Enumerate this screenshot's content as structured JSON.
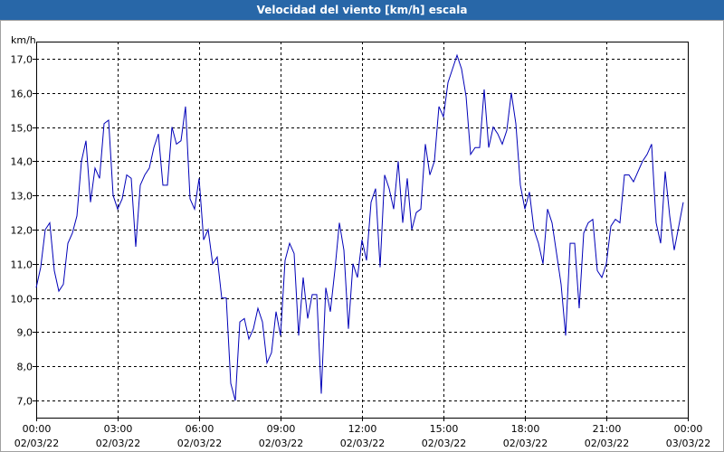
{
  "chart_data": {
    "type": "line",
    "title": "Velocidad del viento [km/h] escala",
    "y_unit": "km/h",
    "x": [
      0,
      10,
      20,
      30,
      40,
      50,
      60,
      70,
      80,
      90,
      100,
      110,
      120,
      130,
      140,
      150,
      160,
      170,
      180,
      190,
      200,
      210,
      220,
      230,
      240,
      250,
      260,
      270,
      280,
      290,
      300,
      310,
      320,
      330,
      340,
      350,
      360,
      370,
      380,
      390,
      400,
      410,
      420,
      430,
      440,
      450,
      460,
      470,
      480,
      490,
      500,
      510,
      520,
      530,
      540,
      550,
      560,
      570,
      580,
      590,
      600,
      610,
      620,
      630,
      640,
      650,
      660,
      670,
      680,
      690,
      700,
      710,
      720,
      730,
      740,
      750,
      760,
      770,
      780,
      790,
      800,
      810,
      820,
      830,
      840,
      850,
      860,
      870,
      880,
      890,
      900,
      910,
      920,
      930,
      940,
      950,
      960,
      970,
      980,
      990,
      1000,
      1010,
      1020,
      1030,
      1040,
      1050,
      1060,
      1070,
      1080,
      1090,
      1100,
      1110,
      1120,
      1130,
      1140,
      1150,
      1160,
      1170,
      1180,
      1190,
      1200,
      1210,
      1220,
      1230,
      1240,
      1250,
      1260,
      1270,
      1280,
      1290,
      1300,
      1310,
      1320,
      1330,
      1340,
      1350,
      1360,
      1370,
      1380,
      1390,
      1400,
      1410,
      1420,
      1430
    ],
    "series": [
      {
        "name": "Velocidad del viento",
        "color": "#0000b8",
        "values": [
          10.3,
          10.9,
          12.0,
          12.2,
          10.8,
          10.2,
          10.4,
          11.6,
          11.9,
          12.4,
          14.0,
          14.6,
          12.8,
          13.8,
          13.5,
          15.1,
          15.2,
          13.0,
          12.6,
          12.9,
          13.6,
          13.5,
          11.5,
          13.3,
          13.6,
          13.8,
          14.4,
          14.8,
          13.3,
          13.3,
          15.0,
          14.5,
          14.6,
          15.6,
          12.9,
          12.6,
          13.5,
          11.7,
          12.0,
          11.0,
          11.2,
          10.0,
          10.0,
          7.5,
          7.0,
          9.3,
          9.4,
          8.8,
          9.1,
          9.7,
          9.3,
          8.1,
          8.4,
          9.6,
          8.9,
          11.1,
          11.6,
          11.3,
          8.9,
          10.6,
          9.4,
          10.1,
          10.1,
          7.2,
          10.3,
          9.6,
          10.8,
          12.2,
          11.4,
          9.1,
          11.0,
          10.6,
          11.7,
          11.1,
          12.8,
          13.2,
          10.9,
          13.6,
          13.2,
          12.6,
          14.0,
          12.2,
          13.5,
          12.0,
          12.5,
          12.6,
          14.5,
          13.6,
          14.0,
          15.6,
          15.3,
          16.3,
          16.7,
          17.1,
          16.7,
          15.9,
          14.2,
          14.4,
          14.4,
          16.1,
          14.4,
          15.0,
          14.8,
          14.5,
          14.9,
          16.0,
          15.1,
          13.3,
          12.6,
          13.1,
          12.0,
          11.6,
          11.0,
          12.6,
          12.2,
          11.3,
          10.4,
          8.9,
          11.6,
          11.6,
          9.7,
          11.9,
          12.2,
          12.3,
          10.8,
          10.6,
          11.0,
          12.1,
          12.3,
          12.2,
          13.6,
          13.6,
          13.4,
          13.7,
          14.0,
          14.2,
          14.5,
          12.2,
          11.6,
          13.7,
          12.4,
          11.4,
          12.1,
          12.8
        ]
      }
    ],
    "xlim": [
      0,
      1440
    ],
    "xticks": [
      {
        "value": 0,
        "label": "00:00",
        "date": "02/03/22"
      },
      {
        "value": 180,
        "label": "03:00",
        "date": "02/03/22"
      },
      {
        "value": 360,
        "label": "06:00",
        "date": "02/03/22"
      },
      {
        "value": 540,
        "label": "09:00",
        "date": "02/03/22"
      },
      {
        "value": 720,
        "label": "12:00",
        "date": "02/03/22"
      },
      {
        "value": 900,
        "label": "15:00",
        "date": "02/03/22"
      },
      {
        "value": 1080,
        "label": "18:00",
        "date": "02/03/22"
      },
      {
        "value": 1260,
        "label": "21:00",
        "date": "02/03/22"
      },
      {
        "value": 1440,
        "label": "00:00",
        "date": "03/03/22"
      }
    ],
    "ylim": [
      6.5,
      17.5
    ],
    "yticks": [
      {
        "value": 7,
        "label": "7,0"
      },
      {
        "value": 8,
        "label": "8,0"
      },
      {
        "value": 9,
        "label": "9,0"
      },
      {
        "value": 10,
        "label": "10,0"
      },
      {
        "value": 11,
        "label": "11,0"
      },
      {
        "value": 12,
        "label": "12,0"
      },
      {
        "value": 13,
        "label": "13,0"
      },
      {
        "value": 14,
        "label": "14,0"
      },
      {
        "value": 15,
        "label": "15,0"
      },
      {
        "value": 16,
        "label": "16,0"
      },
      {
        "value": 17,
        "label": "17,0"
      }
    ],
    "grid": true
  }
}
